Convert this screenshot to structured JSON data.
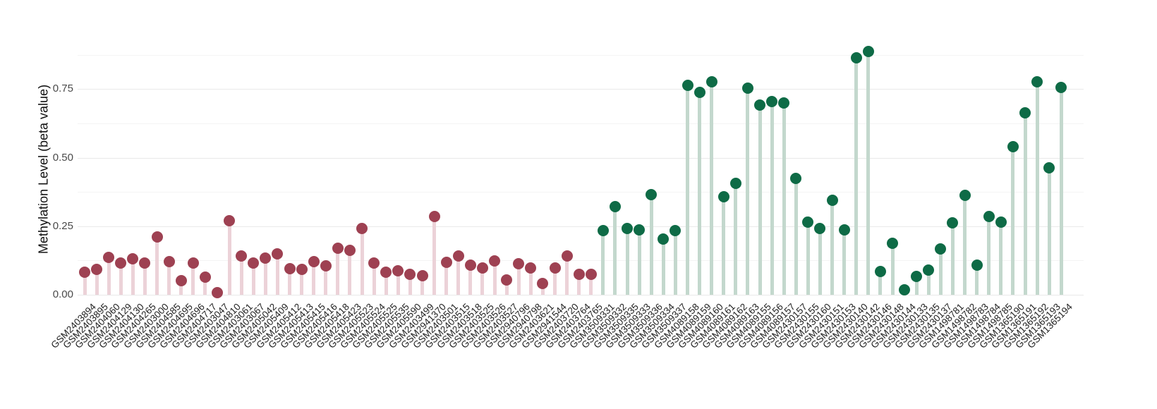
{
  "chart_data": {
    "type": "scatter",
    "style": "lollipop",
    "title": "",
    "xlabel": "",
    "ylabel": "Methylation Level (beta value)",
    "ylim": [
      0,
      0.92
    ],
    "yticks": [
      0,
      0.25,
      0.5,
      0.75
    ],
    "ytick_labels": [
      "0.00",
      "0.25",
      "0.50",
      "0.75"
    ],
    "minor_yticks": [
      0.125,
      0.375,
      0.625,
      0.875
    ],
    "grid": "horizontal",
    "legend_position": "none",
    "gridline_color": "#e9e9e9",
    "series": [
      {
        "name": "group-maroon",
        "dot_color": "#9e4152",
        "stem_color": "#ecd2d8",
        "samples": [
          "GSM2403894",
          "GSM2403895",
          "GSM2404060",
          "GSM2404129",
          "GSM2404130",
          "GSM2404265",
          "GSM2403000",
          "GSM2404585",
          "GSM2404695",
          "GSM2404696",
          "GSM2404717",
          "GSM2403047",
          "GSM2404810",
          "GSM2403061",
          "GSM2403067",
          "GSM2405042",
          "GSM2405409",
          "GSM2405412",
          "GSM2405413",
          "GSM2405415",
          "GSM2405416",
          "GSM2405418",
          "GSM2405423",
          "GSM2405523",
          "GSM2405524",
          "GSM2405525",
          "GSM2405535",
          "GSM2405590",
          "GSM2403499",
          "GSM2941370",
          "GSM2403501",
          "GSM2403515",
          "GSM2403518",
          "GSM2403525",
          "GSM2403526",
          "GSM2403527",
          "GSM2940796",
          "GSM2940798",
          "GSM2403621",
          "GSM2941544",
          "GSM2403720",
          "GSM2403764",
          "GSM2403765"
        ],
        "values": [
          0.083,
          0.093,
          0.137,
          0.117,
          0.131,
          0.116,
          0.211,
          0.121,
          0.052,
          0.115,
          0.064,
          0.007,
          0.269,
          0.141,
          0.115,
          0.134,
          0.149,
          0.095,
          0.092,
          0.121,
          0.106,
          0.17,
          0.162,
          0.242,
          0.116,
          0.082,
          0.087,
          0.074,
          0.069,
          0.286,
          0.118,
          0.142,
          0.108,
          0.099,
          0.123,
          0.055,
          0.112,
          0.098,
          0.042,
          0.098,
          0.141,
          0.074,
          0.074
        ]
      },
      {
        "name": "group-green",
        "dot_color": "#0e6b46",
        "stem_color": "#c3d8cd",
        "samples": [
          "GSM3509331",
          "GSM3509332",
          "GSM3509335",
          "GSM3509333",
          "GSM3509336",
          "GSM3509334",
          "GSM3509337",
          "GSM4089158",
          "GSM4089159",
          "GSM4089160",
          "GSM4089161",
          "GSM4089162",
          "GSM4089163",
          "GSM4089155",
          "GSM4089156",
          "GSM4089157",
          "GSM2430157",
          "GSM2430155",
          "GSM2430160",
          "GSM2430151",
          "GSM2430153",
          "GSM2430140",
          "GSM2430142",
          "GSM2430146",
          "GSM2430148",
          "GSM2430144",
          "GSM2430133",
          "GSM2430135",
          "GSM2430137",
          "GSM1498781",
          "GSM1498782",
          "GSM1498783",
          "GSM1498784",
          "GSM1498785",
          "GSM1365190",
          "GSM1365191",
          "GSM1365192",
          "GSM1365193",
          "GSM1365194"
        ],
        "values": [
          0.233,
          0.322,
          0.241,
          0.237,
          0.365,
          0.204,
          0.235,
          0.764,
          0.738,
          0.776,
          0.357,
          0.406,
          0.754,
          0.693,
          0.706,
          0.7,
          0.425,
          0.265,
          0.243,
          0.344,
          0.236,
          0.865,
          0.888,
          0.085,
          0.188,
          0.018,
          0.068,
          0.089,
          0.168,
          0.263,
          0.363,
          0.108,
          0.286,
          0.265,
          0.54,
          0.663,
          0.778,
          0.462,
          0.756
        ]
      }
    ]
  }
}
